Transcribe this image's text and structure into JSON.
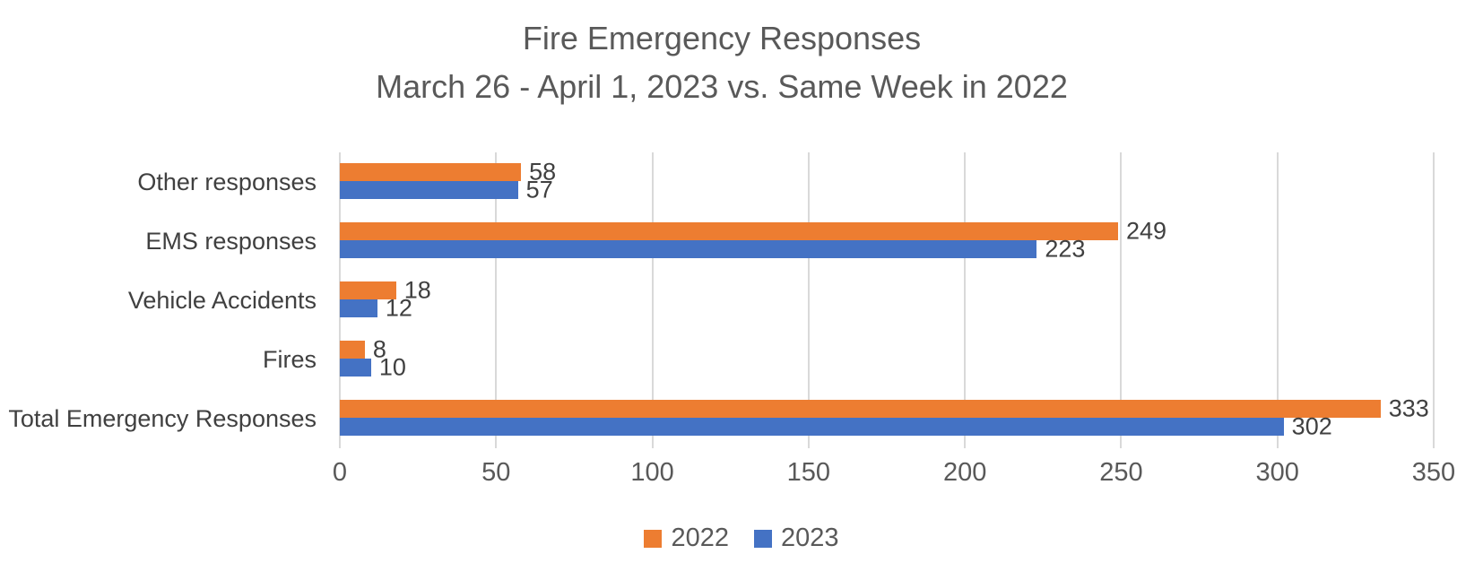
{
  "title": {
    "line1": "Fire Emergency Responses",
    "line2": "March 26 - April 1, 2023 vs. Same Week in 2022"
  },
  "chart_data": {
    "type": "bar",
    "orientation": "horizontal",
    "title": "Fire Emergency Responses",
    "subtitle": "March 26 - April 1, 2023 vs. Same Week in 2022",
    "categories": [
      "Other responses",
      "EMS responses",
      "Vehicle Accidents",
      "Fires",
      "Total Emergency Responses"
    ],
    "series": [
      {
        "name": "2022",
        "color": "#ED7D31",
        "values": [
          58,
          249,
          18,
          8,
          333
        ]
      },
      {
        "name": "2023",
        "color": "#4472C4",
        "values": [
          57,
          223,
          12,
          10,
          302
        ]
      }
    ],
    "xlim": [
      0,
      350
    ],
    "xticks": [
      0,
      50,
      100,
      150,
      200,
      250,
      300,
      350
    ],
    "grid": true,
    "data_labels": true,
    "legend_position": "bottom"
  },
  "legend": {
    "items": [
      {
        "label": "2022",
        "color": "#ED7D31"
      },
      {
        "label": "2023",
        "color": "#4472C4"
      }
    ]
  },
  "colors": {
    "series_2022": "#ED7D31",
    "series_2023": "#4472C4",
    "title_text": "#595959",
    "axis_text": "#595959",
    "label_text": "#404040",
    "gridline": "#D9D9D9",
    "background": "#FFFFFF"
  }
}
